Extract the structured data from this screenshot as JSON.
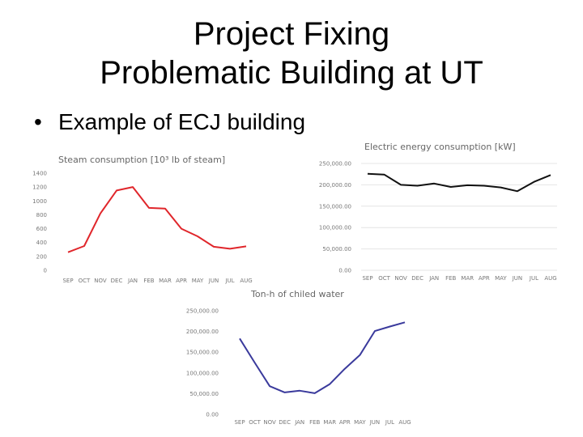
{
  "slide": {
    "title_line1": "Project Fixing",
    "title_line2": "Problematic Building at UT",
    "bullet_marker": "•",
    "bullet_text": "Example of ECJ building"
  },
  "chart_data": [
    {
      "id": "steam",
      "type": "line",
      "title": "Steam consumption [10³ lb of steam]",
      "categories": [
        "SEP",
        "OCT",
        "NOV",
        "DEC",
        "JAN",
        "FEB",
        "MAR",
        "APR",
        "MAY",
        "JUN",
        "JUL",
        "AUG"
      ],
      "series": [
        {
          "values": [
            260,
            350,
            820,
            1150,
            1200,
            900,
            890,
            600,
            490,
            340,
            310,
            345
          ]
        }
      ],
      "yticks": [
        "0",
        "200",
        "400",
        "600",
        "800",
        "1000",
        "1200",
        "1400"
      ],
      "ylim": [
        0,
        1400
      ],
      "grid": false,
      "color": "#e0262b"
    },
    {
      "id": "electric",
      "type": "line",
      "title": "Electric energy consumption [kW]",
      "categories": [
        "SEP",
        "OCT",
        "NOV",
        "DEC",
        "JAN",
        "FEB",
        "MAR",
        "APR",
        "MAY",
        "JUN",
        "JUL",
        "AUG"
      ],
      "series": [
        {
          "values": [
            226000,
            224000,
            200000,
            198000,
            203000,
            195000,
            199000,
            198000,
            194000,
            185000,
            207000,
            223000
          ]
        }
      ],
      "yticks": [
        "0.00",
        "50,000.00",
        "100,000.00",
        "150,000.00",
        "200,000.00",
        "250,000.00"
      ],
      "ylim": [
        0,
        250000
      ],
      "grid": true,
      "color": "#111111"
    },
    {
      "id": "chilled",
      "type": "line",
      "title": "Ton-h of chiled water",
      "categories": [
        "SEP",
        "OCT",
        "NOV",
        "DEC",
        "JAN",
        "FEB",
        "MAR",
        "APR",
        "MAY",
        "JUN",
        "JUL",
        "AUG"
      ],
      "series": [
        {
          "values": [
            183000,
            125000,
            68000,
            53000,
            57000,
            51000,
            73000,
            110000,
            143000,
            201000,
            212000,
            222000
          ]
        }
      ],
      "yticks": [
        "0.00",
        "50,000.00",
        "100,000.00",
        "150,000.00",
        "200,000.00",
        "250,000.00"
      ],
      "ylim": [
        0,
        250000
      ],
      "grid": false,
      "color": "#3a3a9c"
    }
  ]
}
